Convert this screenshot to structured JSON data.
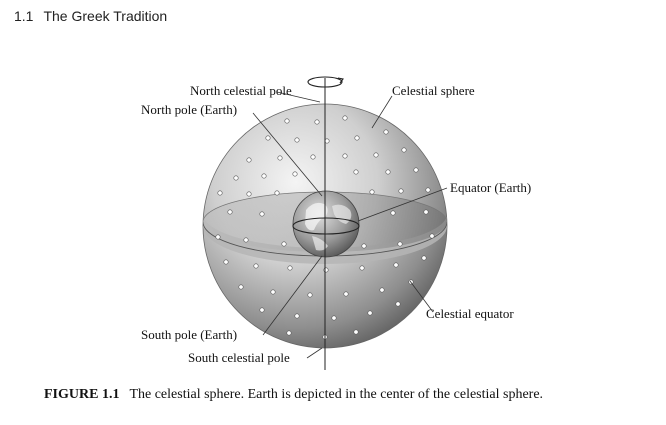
{
  "header": {
    "section_number": "1.1",
    "section_title": "The Greek Tradition"
  },
  "labels": {
    "north_celestial_pole": "North celestial pole",
    "north_pole_earth": "North pole (Earth)",
    "celestial_sphere": "Celestial sphere",
    "equator_earth": "Equator (Earth)",
    "celestial_equator": "Celestial equator",
    "south_pole_earth": "South pole (Earth)",
    "south_celestial_pole": "South celestial pole"
  },
  "caption": {
    "figure_label": "FIGURE 1.1",
    "text": "The celestial sphere. Earth is depicted in the center of the celestial sphere."
  }
}
